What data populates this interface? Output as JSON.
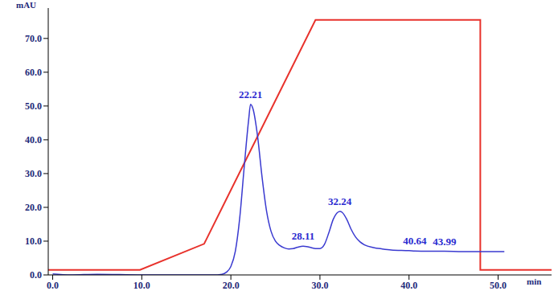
{
  "chart_data": {
    "type": "line",
    "x_label": "min",
    "y_label": "mAU",
    "xlim": [
      -0.5,
      56
    ],
    "ylim": [
      0,
      79
    ],
    "xticks": [
      {
        "value": 0,
        "label": "0.0"
      },
      {
        "value": 10,
        "label": "10.0"
      },
      {
        "value": 20,
        "label": "20.0"
      },
      {
        "value": 30,
        "label": "30.0"
      },
      {
        "value": 40,
        "label": "40.0"
      },
      {
        "value": 50,
        "label": "50.0"
      }
    ],
    "yticks": [
      {
        "value": 0,
        "label": "0.0"
      },
      {
        "value": 10,
        "label": "10.0"
      },
      {
        "value": 20,
        "label": "20.0"
      },
      {
        "value": 30,
        "label": "30.0"
      },
      {
        "value": 40,
        "label": "40.0"
      },
      {
        "value": 50,
        "label": "50.0"
      },
      {
        "value": 60,
        "label": "60.0"
      },
      {
        "value": 70,
        "label": "70.0"
      }
    ],
    "grid": false,
    "series": [
      {
        "color": "#e8322c",
        "x": [
          -0.5,
          9.8,
          17,
          29.5,
          48,
          48,
          56
        ],
        "values": [
          1.5,
          1.5,
          9.2,
          75.5,
          75.5,
          1.5,
          1.5
        ]
      },
      {
        "color": "#3a3ad0",
        "x": [
          0,
          2,
          5,
          10,
          18,
          19,
          19.5,
          20,
          20.5,
          21,
          21.5,
          22,
          22.21,
          22.5,
          23,
          23.5,
          24,
          24.5,
          25,
          25.5,
          26,
          26.5,
          27,
          27.5,
          28.11,
          28.5,
          29,
          29.5,
          30,
          30.5,
          31,
          31.5,
          32.24,
          32.5,
          33,
          33.5,
          34,
          34.5,
          35,
          36,
          37,
          38,
          40,
          40.64,
          42,
          43.99,
          46,
          48,
          50.7
        ],
        "values": [
          0.3,
          0,
          0.2,
          0,
          0,
          0.2,
          0.8,
          2.5,
          7,
          17,
          32,
          46,
          50.5,
          49,
          41,
          29,
          19,
          13,
          10,
          8.7,
          8,
          7.7,
          7.8,
          8.2,
          8.5,
          8.4,
          8.1,
          7.8,
          7.8,
          9,
          12.5,
          16.5,
          18.8,
          18.5,
          16.5,
          13.5,
          11.2,
          9.8,
          8.9,
          8.1,
          7.7,
          7.4,
          7.2,
          7.1,
          7,
          7,
          6.9,
          6.9,
          6.9
        ]
      }
    ],
    "annotations": [
      {
        "x": 22.21,
        "y": 50.5,
        "text": "22.21"
      },
      {
        "x": 28.11,
        "y": 8.5,
        "text": "28.11"
      },
      {
        "x": 32.24,
        "y": 18.8,
        "text": "32.24"
      },
      {
        "x": 40.64,
        "y": 7.1,
        "text": "40.64"
      },
      {
        "x": 43.99,
        "y": 7,
        "text": "43.99"
      }
    ]
  }
}
